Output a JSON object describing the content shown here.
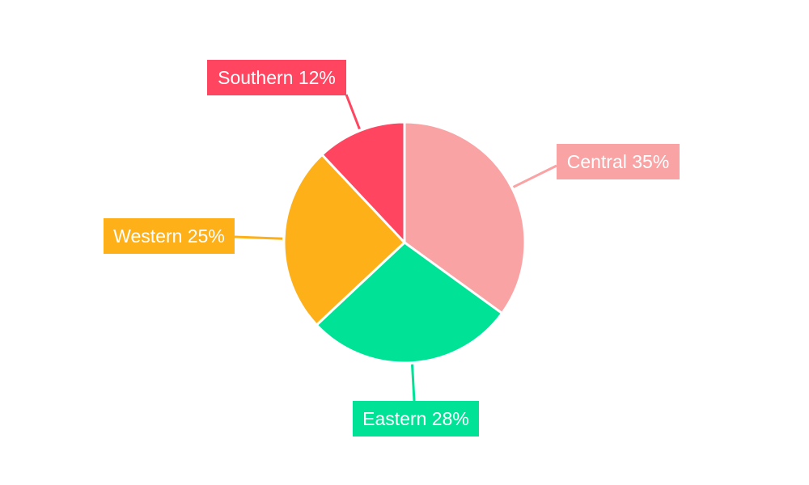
{
  "chart_data": {
    "type": "pie",
    "start_angle": "top, clockwise",
    "legend": "none",
    "slices": [
      {
        "label": "Central",
        "value": 35,
        "text": "Central 35%",
        "color": "#F9A3A4"
      },
      {
        "label": "Eastern",
        "value": 28,
        "text": "Eastern 28%",
        "color": "#00E396"
      },
      {
        "label": "Western",
        "value": 25,
        "text": "Western 25%",
        "color": "#FEB019"
      },
      {
        "label": "Southern",
        "value": 12,
        "text": "Southern 12%",
        "color": "#FF4560"
      }
    ]
  }
}
